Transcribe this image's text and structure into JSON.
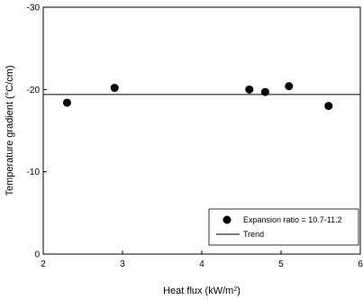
{
  "chart_data": {
    "type": "scatter",
    "xlabel": "Heat flux (kW/m",
    "xlabel_sup": "2",
    "xlabel_suffix": ")",
    "ylabel": "Temperature gradient (°C/cm)",
    "xlim": [
      2,
      6
    ],
    "ylim": [
      0,
      -30
    ],
    "x_ticks": [
      "2",
      "3",
      "4",
      "5",
      "6"
    ],
    "y_ticks": [
      "0",
      "-10",
      "-20",
      "-30"
    ],
    "grid": false,
    "legend_position": "bottom-right",
    "series": [
      {
        "name": "Expansion ratio = 10.7-11.2",
        "kind": "points",
        "color": "#000000",
        "x": [
          2.3,
          2.9,
          4.6,
          4.8,
          5.1,
          5.6
        ],
        "y": [
          -18.4,
          -20.2,
          -20.0,
          -19.7,
          -20.4,
          -18.0
        ]
      },
      {
        "name": "Trend",
        "kind": "line",
        "color": "#000000",
        "x": [
          2,
          6
        ],
        "y": [
          -19.4,
          -19.4
        ]
      }
    ]
  }
}
